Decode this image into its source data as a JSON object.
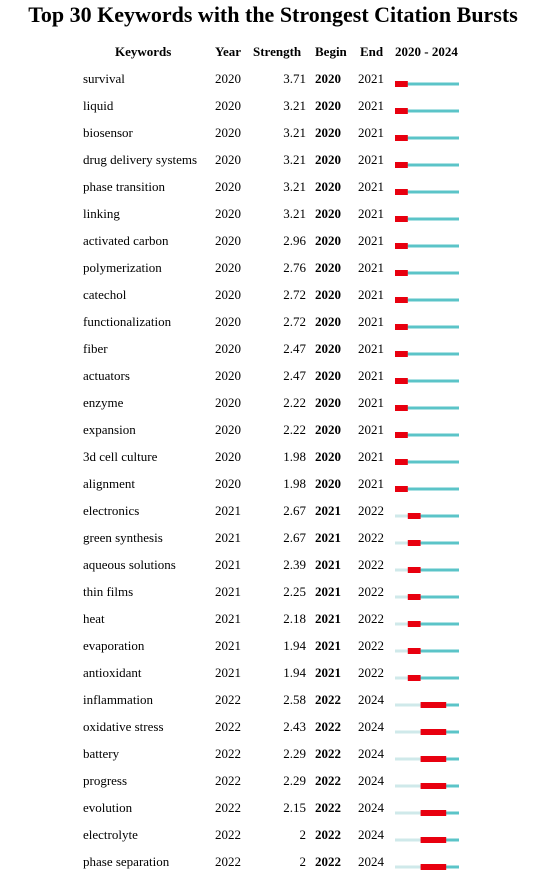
{
  "title": "Top 30 Keywords with the Strongest Citation Bursts",
  "headers": {
    "keywords": "Keywords",
    "year": "Year",
    "strength": "Strength",
    "begin": "Begin",
    "end": "End",
    "range": "2020 - 2024"
  },
  "colors": {
    "burst": "#e8000f",
    "active": "#5bc4c8",
    "inactive": "#cfe9ea"
  },
  "chart_data": {
    "type": "table",
    "timeline": [
      2020,
      2024
    ],
    "rows": [
      {
        "keyword": "survival",
        "year": "2020",
        "strength": "3.71",
        "begin": "2020",
        "end": "2021"
      },
      {
        "keyword": "liquid",
        "year": "2020",
        "strength": "3.21",
        "begin": "2020",
        "end": "2021"
      },
      {
        "keyword": "biosensor",
        "year": "2020",
        "strength": "3.21",
        "begin": "2020",
        "end": "2021"
      },
      {
        "keyword": "drug delivery systems",
        "year": "2020",
        "strength": "3.21",
        "begin": "2020",
        "end": "2021"
      },
      {
        "keyword": "phase transition",
        "year": "2020",
        "strength": "3.21",
        "begin": "2020",
        "end": "2021"
      },
      {
        "keyword": "linking",
        "year": "2020",
        "strength": "3.21",
        "begin": "2020",
        "end": "2021"
      },
      {
        "keyword": "activated carbon",
        "year": "2020",
        "strength": "2.96",
        "begin": "2020",
        "end": "2021"
      },
      {
        "keyword": "polymerization",
        "year": "2020",
        "strength": "2.76",
        "begin": "2020",
        "end": "2021"
      },
      {
        "keyword": "catechol",
        "year": "2020",
        "strength": "2.72",
        "begin": "2020",
        "end": "2021"
      },
      {
        "keyword": "functionalization",
        "year": "2020",
        "strength": "2.72",
        "begin": "2020",
        "end": "2021"
      },
      {
        "keyword": "fiber",
        "year": "2020",
        "strength": "2.47",
        "begin": "2020",
        "end": "2021"
      },
      {
        "keyword": "actuators",
        "year": "2020",
        "strength": "2.47",
        "begin": "2020",
        "end": "2021"
      },
      {
        "keyword": "enzyme",
        "year": "2020",
        "strength": "2.22",
        "begin": "2020",
        "end": "2021"
      },
      {
        "keyword": "expansion",
        "year": "2020",
        "strength": "2.22",
        "begin": "2020",
        "end": "2021"
      },
      {
        "keyword": "3d cell culture",
        "year": "2020",
        "strength": "1.98",
        "begin": "2020",
        "end": "2021"
      },
      {
        "keyword": "alignment",
        "year": "2020",
        "strength": "1.98",
        "begin": "2020",
        "end": "2021"
      },
      {
        "keyword": "electronics",
        "year": "2021",
        "strength": "2.67",
        "begin": "2021",
        "end": "2022"
      },
      {
        "keyword": "green synthesis",
        "year": "2021",
        "strength": "2.67",
        "begin": "2021",
        "end": "2022"
      },
      {
        "keyword": "aqueous solutions",
        "year": "2021",
        "strength": "2.39",
        "begin": "2021",
        "end": "2022"
      },
      {
        "keyword": "thin films",
        "year": "2021",
        "strength": "2.25",
        "begin": "2021",
        "end": "2022"
      },
      {
        "keyword": "heat",
        "year": "2021",
        "strength": "2.18",
        "begin": "2021",
        "end": "2022"
      },
      {
        "keyword": "evaporation",
        "year": "2021",
        "strength": "1.94",
        "begin": "2021",
        "end": "2022"
      },
      {
        "keyword": "antioxidant",
        "year": "2021",
        "strength": "1.94",
        "begin": "2021",
        "end": "2022"
      },
      {
        "keyword": "inflammation",
        "year": "2022",
        "strength": "2.58",
        "begin": "2022",
        "end": "2024"
      },
      {
        "keyword": "oxidative stress",
        "year": "2022",
        "strength": "2.43",
        "begin": "2022",
        "end": "2024"
      },
      {
        "keyword": "battery",
        "year": "2022",
        "strength": "2.29",
        "begin": "2022",
        "end": "2024"
      },
      {
        "keyword": "progress",
        "year": "2022",
        "strength": "2.29",
        "begin": "2022",
        "end": "2024"
      },
      {
        "keyword": "evolution",
        "year": "2022",
        "strength": "2.15",
        "begin": "2022",
        "end": "2024"
      },
      {
        "keyword": "electrolyte",
        "year": "2022",
        "strength": "2",
        "begin": "2022",
        "end": "2024"
      },
      {
        "keyword": "phase separation",
        "year": "2022",
        "strength": "2",
        "begin": "2022",
        "end": "2024"
      }
    ]
  }
}
